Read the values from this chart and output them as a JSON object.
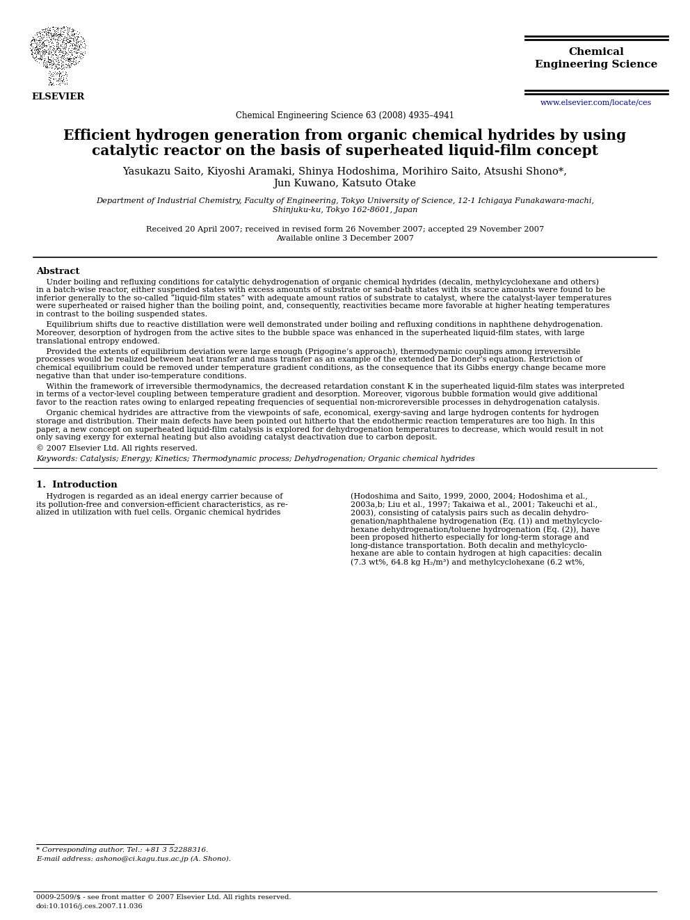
{
  "title_line1": "Efficient hydrogen generation from organic chemical hydrides by using",
  "title_line2": "catalytic reactor on the basis of superheated liquid-film concept",
  "authors": "Yasukazu Saito, Kiyoshi Aramaki, Shinya Hodoshima, Morihiro Saito, Atsushi Shono*,",
  "authors2": "Jun Kuwano, Katsuto Otake",
  "affiliation1": "Department of Industrial Chemistry, Faculty of Engineering, Tokyo University of Science, 12-1 Ichigaya Funakawara-machi,",
  "affiliation2": "Shinjuku-ku, Tokyo 162-8601, Japan",
  "received": "Received 20 April 2007; received in revised form 26 November 2007; accepted 29 November 2007",
  "available": "Available online 3 December 2007",
  "journal_center": "Chemical Engineering Science 63 (2008) 4935–4941",
  "journal_right1": "Chemical",
  "journal_right2": "Engineering Science",
  "journal_url": "www.elsevier.com/locate/ces",
  "elsevier_text": "ELSEVIER",
  "abstract_title": "Abstract",
  "abstract_p1_lines": [
    "    Under boiling and refluxing conditions for catalytic dehydrogenation of organic chemical hydrides (decalin, methylcyclohexane and others)",
    "in a batch-wise reactor, either suspended states with excess amounts of substrate or sand-bath states with its scarce amounts were found to be",
    "inferior generally to the so-called “liquid-film states” with adequate amount ratios of substrate to catalyst, where the catalyst-layer temperatures",
    "were superheated or raised higher than the boiling point, and, consequently, reactivities became more favorable at higher heating temperatures",
    "in contrast to the boiling suspended states."
  ],
  "abstract_p2_lines": [
    "    Equilibrium shifts due to reactive distillation were well demonstrated under boiling and refluxing conditions in naphthene dehydrogenation.",
    "Moreover, desorption of hydrogen from the active sites to the bubble space was enhanced in the superheated liquid-film states, with large",
    "translational entropy endowed."
  ],
  "abstract_p3_lines": [
    "    Provided the extents of equilibrium deviation were large enough (Prigogine’s approach), thermodynamic couplings among irreversible",
    "processes would be realized between heat transfer and mass transfer as an example of the extended De Donder’s equation. Restriction of",
    "chemical equilibrium could be removed under temperature gradient conditions, as the consequence that its Gibbs energy change became more",
    "negative than that under iso-temperature conditions."
  ],
  "abstract_p4_lines": [
    "    Within the framework of irreversible thermodynamics, the decreased retardation constant K in the superheated liquid-film states was interpreted",
    "in terms of a vector-level coupling between temperature gradient and desorption. Moreover, vigorous bubble formation would give additional",
    "favor to the reaction rates owing to enlarged repeating frequencies of sequential non-microreversible processes in dehydrogenation catalysis."
  ],
  "abstract_p5_lines": [
    "    Organic chemical hydrides are attractive from the viewpoints of safe, economical, exergy-saving and large hydrogen contents for hydrogen",
    "storage and distribution. Their main defects have been pointed out hitherto that the endothermic reaction temperatures are too high. In this",
    "paper, a new concept on superheated liquid-film catalysis is explored for dehydrogenation temperatures to decrease, which would result in not",
    "only saving exergy for external heating but also avoiding catalyst deactivation due to carbon deposit."
  ],
  "abstract_copyright": "© 2007 Elsevier Ltd. All rights reserved.",
  "keywords": "Keywords: Catalysis; Energy; Kinetics; Thermodynamic process; Dehydrogenation; Organic chemical hydrides",
  "section1_title": "1.  Introduction",
  "intro_left_lines": [
    "    Hydrogen is regarded as an ideal energy carrier because of",
    "its pollution-free and conversion-efficient characteristics, as re-",
    "alized in utilization with fuel cells. Organic chemical hydrides"
  ],
  "intro_right_lines": [
    "(Hodoshima and Saito, 1999, 2000, 2004; Hodoshima et al.,",
    "2003a,b; Liu et al., 1997; Takaiwa et al., 2001; Takeuchi et al.,",
    "2003), consisting of catalysis pairs such as decalin dehydro-",
    "genation/naphthalene hydrogenation (Eq. (1)) and methylcyclo-",
    "hexane dehydrogenation/toluene hydrogenation (Eq. (2)), have",
    "been proposed hitherto especially for long-term storage and",
    "long-distance transportation. Both decalin and methylcyclo-",
    "hexane are able to contain hydrogen at high capacities: decalin",
    "(7.3 wt%, 64.8 kg H₂/m³) and methylcyclohexane (6.2 wt%,"
  ],
  "footnote_star": "* Corresponding author. Tel.: +81 3 52288316.",
  "footnote_email": "E-mail address: ashono@ci.kagu.tus.ac.jp (A. Shono).",
  "bottom_issn": "0009-2509/$ - see front matter © 2007 Elsevier Ltd. All rights reserved.",
  "bottom_doi": "doi:10.1016/j.ces.2007.11.036",
  "bg_color": "#ffffff",
  "text_color": "#000000",
  "blue_color": "#000099"
}
